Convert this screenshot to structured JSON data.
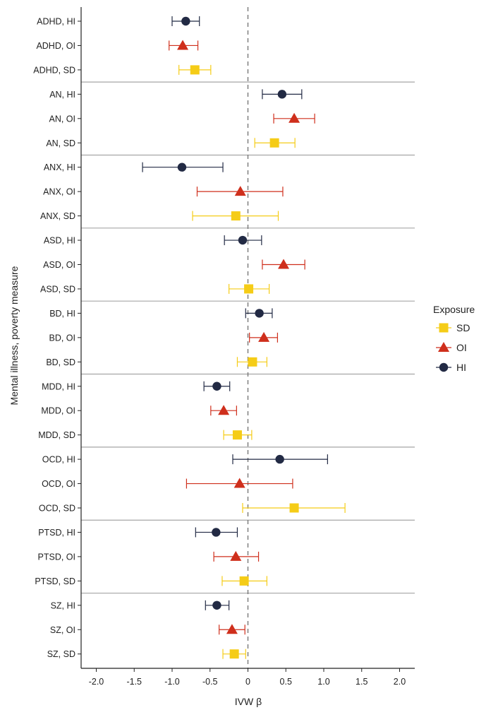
{
  "chart_data": {
    "type": "scatter",
    "subtype": "forest-plot",
    "xlabel": "IVW β",
    "ylabel": "Mental illness, poverty measure",
    "xlim": [
      -2.2,
      2.2
    ],
    "xticks": [
      "-2.0",
      "-1.5",
      "-1.0",
      "-0.5",
      "0",
      "0.5",
      "1.0",
      "1.5",
      "2.0"
    ],
    "reference_line_x": 0,
    "legend": {
      "title": "Exposure",
      "position": "right",
      "entries": [
        {
          "label": "SD",
          "marker": "square",
          "color": "#f5cc17"
        },
        {
          "label": "OI",
          "marker": "triangle",
          "color": "#cf2f1c"
        },
        {
          "label": "HI",
          "marker": "circle",
          "color": "#222a44"
        }
      ]
    },
    "series_colors": {
      "SD": "#f5cc17",
      "OI": "#cf2f1c",
      "HI": "#222a44"
    },
    "rows": [
      {
        "label": "ADHD, HI",
        "exposure": "HI",
        "beta": -0.82,
        "lo": -1.0,
        "hi": -0.64
      },
      {
        "label": "ADHD, OI",
        "exposure": "OI",
        "beta": -0.86,
        "lo": -1.04,
        "hi": -0.66
      },
      {
        "label": "ADHD, SD",
        "exposure": "SD",
        "beta": -0.7,
        "lo": -0.91,
        "hi": -0.49
      },
      {
        "label": "AN, HI",
        "exposure": "HI",
        "beta": 0.45,
        "lo": 0.19,
        "hi": 0.71
      },
      {
        "label": "AN, OI",
        "exposure": "OI",
        "beta": 0.61,
        "lo": 0.34,
        "hi": 0.88
      },
      {
        "label": "AN, SD",
        "exposure": "SD",
        "beta": 0.35,
        "lo": 0.09,
        "hi": 0.62
      },
      {
        "label": "ANX, HI",
        "exposure": "HI",
        "beta": -0.87,
        "lo": -1.39,
        "hi": -0.33
      },
      {
        "label": "ANX, OI",
        "exposure": "OI",
        "beta": -0.1,
        "lo": -0.67,
        "hi": 0.46
      },
      {
        "label": "ANX, SD",
        "exposure": "SD",
        "beta": -0.16,
        "lo": -0.73,
        "hi": 0.4
      },
      {
        "label": "ASD, HI",
        "exposure": "HI",
        "beta": -0.07,
        "lo": -0.31,
        "hi": 0.18
      },
      {
        "label": "ASD, OI",
        "exposure": "OI",
        "beta": 0.47,
        "lo": 0.19,
        "hi": 0.75
      },
      {
        "label": "ASD, SD",
        "exposure": "SD",
        "beta": 0.01,
        "lo": -0.25,
        "hi": 0.28
      },
      {
        "label": "BD, HI",
        "exposure": "HI",
        "beta": 0.15,
        "lo": -0.03,
        "hi": 0.32
      },
      {
        "label": "BD, OI",
        "exposure": "OI",
        "beta": 0.21,
        "lo": 0.02,
        "hi": 0.39
      },
      {
        "label": "BD, SD",
        "exposure": "SD",
        "beta": 0.06,
        "lo": -0.14,
        "hi": 0.25
      },
      {
        "label": "MDD, HI",
        "exposure": "HI",
        "beta": -0.41,
        "lo": -0.58,
        "hi": -0.24
      },
      {
        "label": "MDD, OI",
        "exposure": "OI",
        "beta": -0.32,
        "lo": -0.49,
        "hi": -0.15
      },
      {
        "label": "MDD, SD",
        "exposure": "SD",
        "beta": -0.14,
        "lo": -0.32,
        "hi": 0.05
      },
      {
        "label": "OCD, HI",
        "exposure": "HI",
        "beta": 0.42,
        "lo": -0.2,
        "hi": 1.05
      },
      {
        "label": "OCD, OI",
        "exposure": "OI",
        "beta": -0.11,
        "lo": -0.81,
        "hi": 0.59
      },
      {
        "label": "OCD, SD",
        "exposure": "SD",
        "beta": 0.61,
        "lo": -0.07,
        "hi": 1.28
      },
      {
        "label": "PTSD, HI",
        "exposure": "HI",
        "beta": -0.42,
        "lo": -0.69,
        "hi": -0.14
      },
      {
        "label": "PTSD, OI",
        "exposure": "OI",
        "beta": -0.16,
        "lo": -0.45,
        "hi": 0.14
      },
      {
        "label": "PTSD, SD",
        "exposure": "SD",
        "beta": -0.05,
        "lo": -0.34,
        "hi": 0.25
      },
      {
        "label": "SZ, HI",
        "exposure": "HI",
        "beta": -0.41,
        "lo": -0.56,
        "hi": -0.25
      },
      {
        "label": "SZ, OI",
        "exposure": "OI",
        "beta": -0.21,
        "lo": -0.38,
        "hi": -0.04
      },
      {
        "label": "SZ, SD",
        "exposure": "SD",
        "beta": -0.18,
        "lo": -0.33,
        "hi": -0.03
      }
    ]
  }
}
